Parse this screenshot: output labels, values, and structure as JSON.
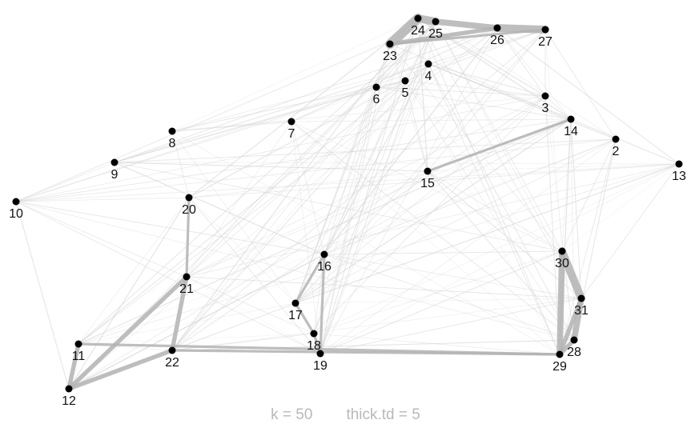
{
  "caption": {
    "k_text": "k = 50",
    "thick_text": "thick.td =  5"
  },
  "colors": {
    "background": "#ffffff",
    "node": "#000000",
    "label": "#111111",
    "edge_faint": "#d6d6d6",
    "edge_strong": "#b3b3b3",
    "caption": "#b9b9b9"
  },
  "nodes": [
    {
      "id": "2"
    },
    {
      "id": "3"
    },
    {
      "id": "4"
    },
    {
      "id": "5"
    },
    {
      "id": "6"
    },
    {
      "id": "7"
    },
    {
      "id": "8"
    },
    {
      "id": "9"
    },
    {
      "id": "10"
    },
    {
      "id": "11"
    },
    {
      "id": "12"
    },
    {
      "id": "13"
    },
    {
      "id": "14"
    },
    {
      "id": "15"
    },
    {
      "id": "16"
    },
    {
      "id": "17"
    },
    {
      "id": "18"
    },
    {
      "id": "19"
    },
    {
      "id": "20"
    },
    {
      "id": "21"
    },
    {
      "id": "22"
    },
    {
      "id": "23"
    },
    {
      "id": "24"
    },
    {
      "id": "25"
    },
    {
      "id": "26"
    },
    {
      "id": "27"
    },
    {
      "id": "28"
    },
    {
      "id": "29"
    },
    {
      "id": "30"
    },
    {
      "id": "31"
    }
  ],
  "strong_edges": [
    {
      "a": "23",
      "b": "24",
      "weight": 5
    },
    {
      "a": "24",
      "b": "25",
      "weight": 4
    },
    {
      "a": "25",
      "b": "26",
      "weight": 3
    },
    {
      "a": "26",
      "b": "27",
      "weight": 4
    },
    {
      "a": "23",
      "b": "26",
      "weight": 2
    },
    {
      "a": "23",
      "b": "27",
      "weight": 1
    },
    {
      "a": "30",
      "b": "31",
      "weight": 4
    },
    {
      "a": "30",
      "b": "29",
      "weight": 3
    },
    {
      "a": "31",
      "b": "28",
      "weight": 3
    },
    {
      "a": "31",
      "b": "29",
      "weight": 2
    },
    {
      "a": "28",
      "b": "29",
      "weight": 2
    },
    {
      "a": "12",
      "b": "21",
      "weight": 2
    },
    {
      "a": "12",
      "b": "22",
      "weight": 2
    },
    {
      "a": "11",
      "b": "12",
      "weight": 2
    },
    {
      "a": "21",
      "b": "22",
      "weight": 2
    },
    {
      "a": "20",
      "b": "21",
      "weight": 1
    },
    {
      "a": "17",
      "b": "18",
      "weight": 1
    },
    {
      "a": "16",
      "b": "17",
      "weight": 1
    },
    {
      "a": "18",
      "b": "19",
      "weight": 1
    },
    {
      "a": "16",
      "b": "19",
      "weight": 1
    },
    {
      "a": "14",
      "b": "15",
      "weight": 1
    },
    {
      "a": "11",
      "b": "29",
      "weight": 1
    },
    {
      "a": "22",
      "b": "29",
      "weight": 1
    }
  ]
}
